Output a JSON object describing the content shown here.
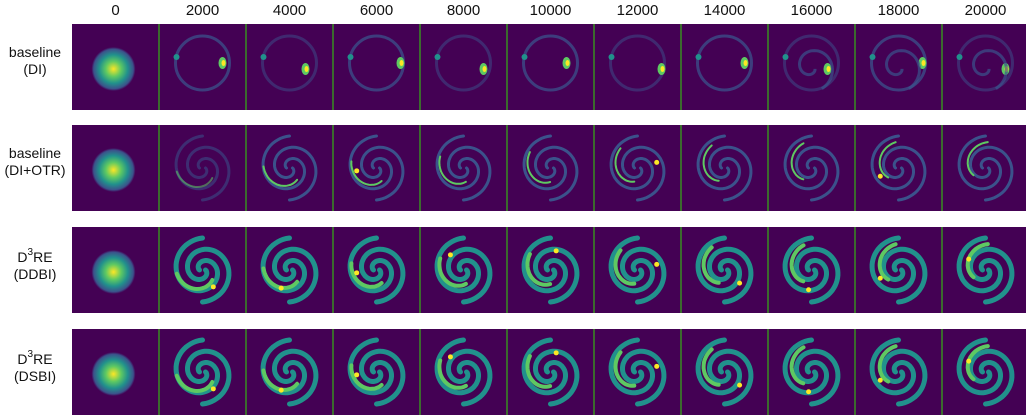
{
  "column_headers": [
    "0",
    "2000",
    "4000",
    "6000",
    "8000",
    "10000",
    "12000",
    "14000",
    "16000",
    "18000",
    "20000"
  ],
  "rows": [
    {
      "label_line1": "baseline",
      "label_line2": "(DI)",
      "sup": "",
      "style": "di"
    },
    {
      "label_line1": "baseline",
      "label_line2": "(DI+OTR)",
      "sup": "",
      "style": "otr"
    },
    {
      "label_line1": "D",
      "label_line1_suffix": "RE",
      "sup": "3",
      "label_line2": "(DDBI)",
      "style": "ddbi"
    },
    {
      "label_line1": "D",
      "label_line1_suffix": "RE",
      "sup": "3",
      "label_line2": "(DSBI)",
      "style": "dsbi"
    }
  ],
  "colors": {
    "background": "#440154",
    "separator": "#3b6b2e",
    "low": "#3b528b",
    "mid": "#21918c",
    "high": "#5ec962",
    "peak": "#fde725"
  }
}
